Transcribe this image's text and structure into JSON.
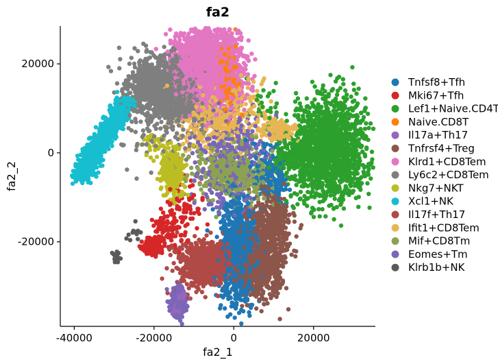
{
  "chart_data": {
    "type": "scatter",
    "title": "fa2",
    "xlabel": "fa2_1",
    "ylabel": "fa2_2",
    "xlim": [
      -43500,
      35500
    ],
    "ylim": [
      -39000,
      28500
    ],
    "xticks": [
      -40000,
      -20000,
      0,
      20000
    ],
    "yticks": [
      -20000,
      0,
      20000
    ],
    "xtick_labels": [
      "-40000",
      "-20000",
      "0",
      "20000"
    ],
    "ytick_labels": [
      "-20000",
      "0",
      "20000"
    ],
    "grid": false,
    "legend_position": "right",
    "series": [
      {
        "name": "Tnfsf8+Tfh",
        "color": "#1f77b4",
        "blobs": [
          [
            1000,
            -22000,
            2200,
            6500,
            900
          ],
          [
            8500,
            -4000,
            2000,
            3000,
            150
          ],
          [
            11000,
            -8000,
            1500,
            2000,
            60
          ]
        ]
      },
      {
        "name": "Mki67+Tfh",
        "color": "#d62728",
        "blobs": [
          [
            -20500,
            -21000,
            1200,
            800,
            150
          ],
          [
            -17000,
            -17000,
            2500,
            2000,
            90
          ],
          [
            -13000,
            -13000,
            3000,
            3500,
            80
          ]
        ]
      },
      {
        "name": "Lef1+Naive.CD4T",
        "color": "#2ca02c",
        "blobs": [
          [
            24000,
            1000,
            4500,
            5500,
            1600
          ],
          [
            15000,
            -1500,
            2500,
            2500,
            150
          ],
          [
            8000,
            10000,
            2000,
            3000,
            30
          ]
        ]
      },
      {
        "name": "Naive.CD8T",
        "color": "#ff7f0e",
        "blobs": [
          [
            -1500,
            17000,
            1200,
            3500,
            300
          ],
          [
            -2800,
            20000,
            900,
            1500,
            80
          ]
        ]
      },
      {
        "name": "Il17a+Th17",
        "color": "#9467bd",
        "blobs": []
      },
      {
        "name": "Tnfrsf4+Treg",
        "color": "#8c564b",
        "blobs": [
          [
            8000,
            -22000,
            2800,
            6000,
            700
          ],
          [
            4000,
            -27000,
            1800,
            2000,
            200
          ],
          [
            11000,
            -14000,
            1500,
            2000,
            120
          ]
        ]
      },
      {
        "name": "Klrd1+CD8Tem",
        "color": "#e377c2",
        "blobs": [
          [
            -6500,
            19500,
            4000,
            4200,
            2200
          ],
          [
            -3500,
            15000,
            2500,
            3000,
            300
          ]
        ]
      },
      {
        "name": "Ly6c2+CD8Tem",
        "color": "#7f7f7f",
        "blobs": [
          [
            -17500,
            15000,
            4500,
            3200,
            1200
          ],
          [
            -13000,
            11000,
            3500,
            2500,
            250
          ],
          [
            -19000,
            4000,
            4000,
            3500,
            80
          ]
        ]
      },
      {
        "name": "Nkg7+NKT",
        "color": "#bcbd22",
        "blobs": [
          [
            -15500,
            -4500,
            1500,
            2500,
            300
          ],
          [
            -20000,
            2000,
            1500,
            1500,
            30
          ]
        ]
      },
      {
        "name": "Xcl1+NK",
        "color": "#17becf",
        "blobs": []
      },
      {
        "name": "Il17f+Th17",
        "color": "#b04a46",
        "blobs": [
          [
            -8000,
            -25000,
            3000,
            2500,
            700
          ],
          [
            -3500,
            -24500,
            2000,
            1800,
            200
          ]
        ]
      },
      {
        "name": "Ifit1+CD8Tem",
        "color": "#e7b553",
        "blobs": [
          [
            -3000,
            10000,
            5500,
            3500,
            400
          ],
          [
            11000,
            5000,
            2500,
            1200,
            150
          ],
          [
            -6500,
            5000,
            3500,
            2500,
            100
          ]
        ]
      },
      {
        "name": "Mif+CD8Tm",
        "color": "#8ca252",
        "blobs": [
          [
            -1500,
            -4000,
            4000,
            3000,
            350
          ],
          [
            5000,
            -6000,
            3000,
            2500,
            100
          ]
        ]
      },
      {
        "name": "Eomes+Tm",
        "color": "#7b66b8",
        "blobs": [
          [
            -14000,
            -33500,
            900,
            1500,
            300
          ],
          [
            0,
            2000,
            5000,
            4500,
            250
          ],
          [
            -2000,
            -9000,
            3000,
            3000,
            80
          ]
        ]
      },
      {
        "name": "Klrb1b+NK",
        "color": "#5a5a5a",
        "blobs": [
          [
            -29500,
            -23500,
            400,
            700,
            25
          ],
          [
            -25000,
            -18000,
            1000,
            1000,
            12
          ]
        ]
      }
    ],
    "line_clusters": [
      {
        "name": "Xcl1+NK",
        "color": "#17becf",
        "from": [
          -38500,
          -5000
        ],
        "to": [
          -27000,
          11500
        ],
        "width": 1800,
        "n": 1100
      },
      {
        "name": "Il17a+Th17",
        "color": "#9467bd",
        "from": [
          -14500,
          -35500
        ],
        "to": [
          -13000,
          -31500
        ],
        "width": 800,
        "n": 250
      }
    ]
  }
}
